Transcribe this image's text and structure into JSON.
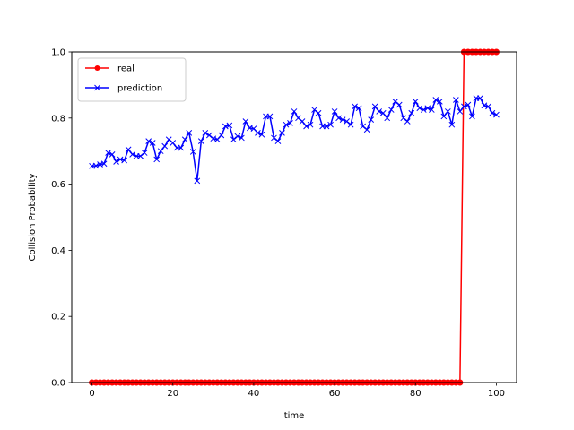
{
  "chart_data": {
    "type": "line",
    "xlabel": "time",
    "ylabel": "Collision Probability",
    "xlim": [
      -5,
      105
    ],
    "ylim": [
      0,
      1.0
    ],
    "x_ticks": [
      "0",
      "20",
      "40",
      "60",
      "80",
      "100"
    ],
    "y_ticks": [
      "0.0",
      "0.2",
      "0.4",
      "0.6",
      "0.8",
      "1.0"
    ],
    "grid": false,
    "legend_position": "top-left",
    "x": [
      0,
      1,
      2,
      3,
      4,
      5,
      6,
      7,
      8,
      9,
      10,
      11,
      12,
      13,
      14,
      15,
      16,
      17,
      18,
      19,
      20,
      21,
      22,
      23,
      24,
      25,
      26,
      27,
      28,
      29,
      30,
      31,
      32,
      33,
      34,
      35,
      36,
      37,
      38,
      39,
      40,
      41,
      42,
      43,
      44,
      45,
      46,
      47,
      48,
      49,
      50,
      51,
      52,
      53,
      54,
      55,
      56,
      57,
      58,
      59,
      60,
      61,
      62,
      63,
      64,
      65,
      66,
      67,
      68,
      69,
      70,
      71,
      72,
      73,
      74,
      75,
      76,
      77,
      78,
      79,
      80,
      81,
      82,
      83,
      84,
      85,
      86,
      87,
      88,
      89,
      90,
      91,
      92,
      93,
      94,
      95,
      96,
      97,
      98,
      99,
      100
    ],
    "series": [
      {
        "name": "real",
        "color": "#ff0000",
        "marker": "circle",
        "values": [
          0,
          0,
          0,
          0,
          0,
          0,
          0,
          0,
          0,
          0,
          0,
          0,
          0,
          0,
          0,
          0,
          0,
          0,
          0,
          0,
          0,
          0,
          0,
          0,
          0,
          0,
          0,
          0,
          0,
          0,
          0,
          0,
          0,
          0,
          0,
          0,
          0,
          0,
          0,
          0,
          0,
          0,
          0,
          0,
          0,
          0,
          0,
          0,
          0,
          0,
          0,
          0,
          0,
          0,
          0,
          0,
          0,
          0,
          0,
          0,
          0,
          0,
          0,
          0,
          0,
          0,
          0,
          0,
          0,
          0,
          0,
          0,
          0,
          0,
          0,
          0,
          0,
          0,
          0,
          0,
          0,
          0,
          0,
          0,
          0,
          0,
          0,
          0,
          0,
          0,
          0,
          0,
          1,
          1,
          1,
          1,
          1,
          1,
          1,
          1,
          1
        ]
      },
      {
        "name": "prediction",
        "color": "#0000ff",
        "marker": "x",
        "values": [
          0.655,
          0.656,
          0.66,
          0.662,
          0.695,
          0.69,
          0.668,
          0.675,
          0.672,
          0.705,
          0.69,
          0.685,
          0.685,
          0.695,
          0.73,
          0.725,
          0.675,
          0.7,
          0.715,
          0.735,
          0.725,
          0.71,
          0.71,
          0.735,
          0.755,
          0.698,
          0.61,
          0.73,
          0.755,
          0.748,
          0.738,
          0.735,
          0.748,
          0.775,
          0.778,
          0.735,
          0.745,
          0.74,
          0.79,
          0.77,
          0.768,
          0.755,
          0.75,
          0.805,
          0.805,
          0.74,
          0.73,
          0.755,
          0.78,
          0.785,
          0.82,
          0.8,
          0.79,
          0.775,
          0.78,
          0.825,
          0.815,
          0.775,
          0.775,
          0.78,
          0.82,
          0.8,
          0.795,
          0.79,
          0.78,
          0.835,
          0.83,
          0.775,
          0.765,
          0.795,
          0.835,
          0.82,
          0.815,
          0.8,
          0.825,
          0.85,
          0.84,
          0.8,
          0.79,
          0.815,
          0.85,
          0.83,
          0.825,
          0.83,
          0.825,
          0.855,
          0.85,
          0.805,
          0.82,
          0.78,
          0.855,
          0.82,
          0.835,
          0.84,
          0.805,
          0.86,
          0.86,
          0.838,
          0.835,
          0.815,
          0.81
        ]
      }
    ]
  }
}
